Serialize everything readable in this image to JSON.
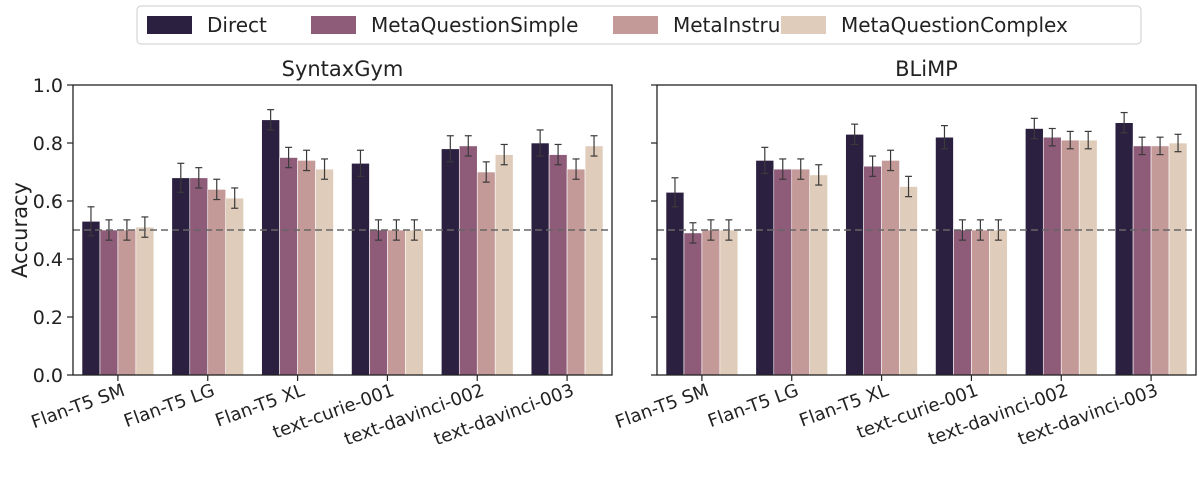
{
  "legend": {
    "position": "top-center",
    "items": [
      {
        "label": "Direct",
        "color": "#2c2040"
      },
      {
        "label": "MetaQuestionSimple",
        "color": "#8e5b78"
      },
      {
        "label": "MetaInstruct",
        "color": "#c49a98"
      },
      {
        "label": "MetaQuestionComplex",
        "color": "#e0ccba"
      }
    ]
  },
  "chart_data": [
    {
      "type": "bar",
      "title": "SyntaxGym",
      "ylabel": "Accuracy",
      "xlabel": "",
      "ylim": [
        0.0,
        1.0
      ],
      "yticks": [
        "0.0",
        "0.2",
        "0.4",
        "0.6",
        "0.8",
        "1.0"
      ],
      "reference_line": 0.5,
      "categories": [
        "Flan-T5 SM",
        "Flan-T5 LG",
        "Flan-T5 XL",
        "text-curie-001",
        "text-davinci-002",
        "text-davinci-003"
      ],
      "series": [
        {
          "name": "Direct",
          "values": [
            0.53,
            0.68,
            0.88,
            0.73,
            0.78,
            0.8
          ],
          "errors": [
            0.05,
            0.05,
            0.035,
            0.045,
            0.045,
            0.045
          ]
        },
        {
          "name": "MetaQuestionSimple",
          "values": [
            0.5,
            0.68,
            0.75,
            0.5,
            0.79,
            0.76
          ],
          "errors": [
            0.035,
            0.035,
            0.035,
            0.035,
            0.035,
            0.035
          ]
        },
        {
          "name": "MetaInstruct",
          "values": [
            0.5,
            0.64,
            0.74,
            0.5,
            0.7,
            0.71
          ],
          "errors": [
            0.035,
            0.035,
            0.035,
            0.035,
            0.035,
            0.035
          ]
        },
        {
          "name": "MetaQuestionComplex",
          "values": [
            0.51,
            0.61,
            0.71,
            0.5,
            0.76,
            0.79
          ],
          "errors": [
            0.035,
            0.035,
            0.035,
            0.035,
            0.035,
            0.035
          ]
        }
      ]
    },
    {
      "type": "bar",
      "title": "BLiMP",
      "ylabel": "",
      "xlabel": "",
      "ylim": [
        0.0,
        1.0
      ],
      "reference_line": 0.5,
      "categories": [
        "Flan-T5 SM",
        "Flan-T5 LG",
        "Flan-T5 XL",
        "text-curie-001",
        "text-davinci-002",
        "text-davinci-003"
      ],
      "series": [
        {
          "name": "Direct",
          "values": [
            0.63,
            0.74,
            0.83,
            0.82,
            0.85,
            0.87
          ],
          "errors": [
            0.05,
            0.045,
            0.035,
            0.04,
            0.035,
            0.035
          ]
        },
        {
          "name": "MetaQuestionSimple",
          "values": [
            0.49,
            0.71,
            0.72,
            0.5,
            0.82,
            0.79
          ],
          "errors": [
            0.035,
            0.035,
            0.035,
            0.035,
            0.03,
            0.03
          ]
        },
        {
          "name": "MetaInstruct",
          "values": [
            0.5,
            0.71,
            0.74,
            0.5,
            0.81,
            0.79
          ],
          "errors": [
            0.035,
            0.035,
            0.035,
            0.035,
            0.03,
            0.03
          ]
        },
        {
          "name": "MetaQuestionComplex",
          "values": [
            0.5,
            0.69,
            0.65,
            0.5,
            0.81,
            0.8
          ],
          "errors": [
            0.035,
            0.035,
            0.035,
            0.035,
            0.03,
            0.03
          ]
        }
      ]
    }
  ]
}
